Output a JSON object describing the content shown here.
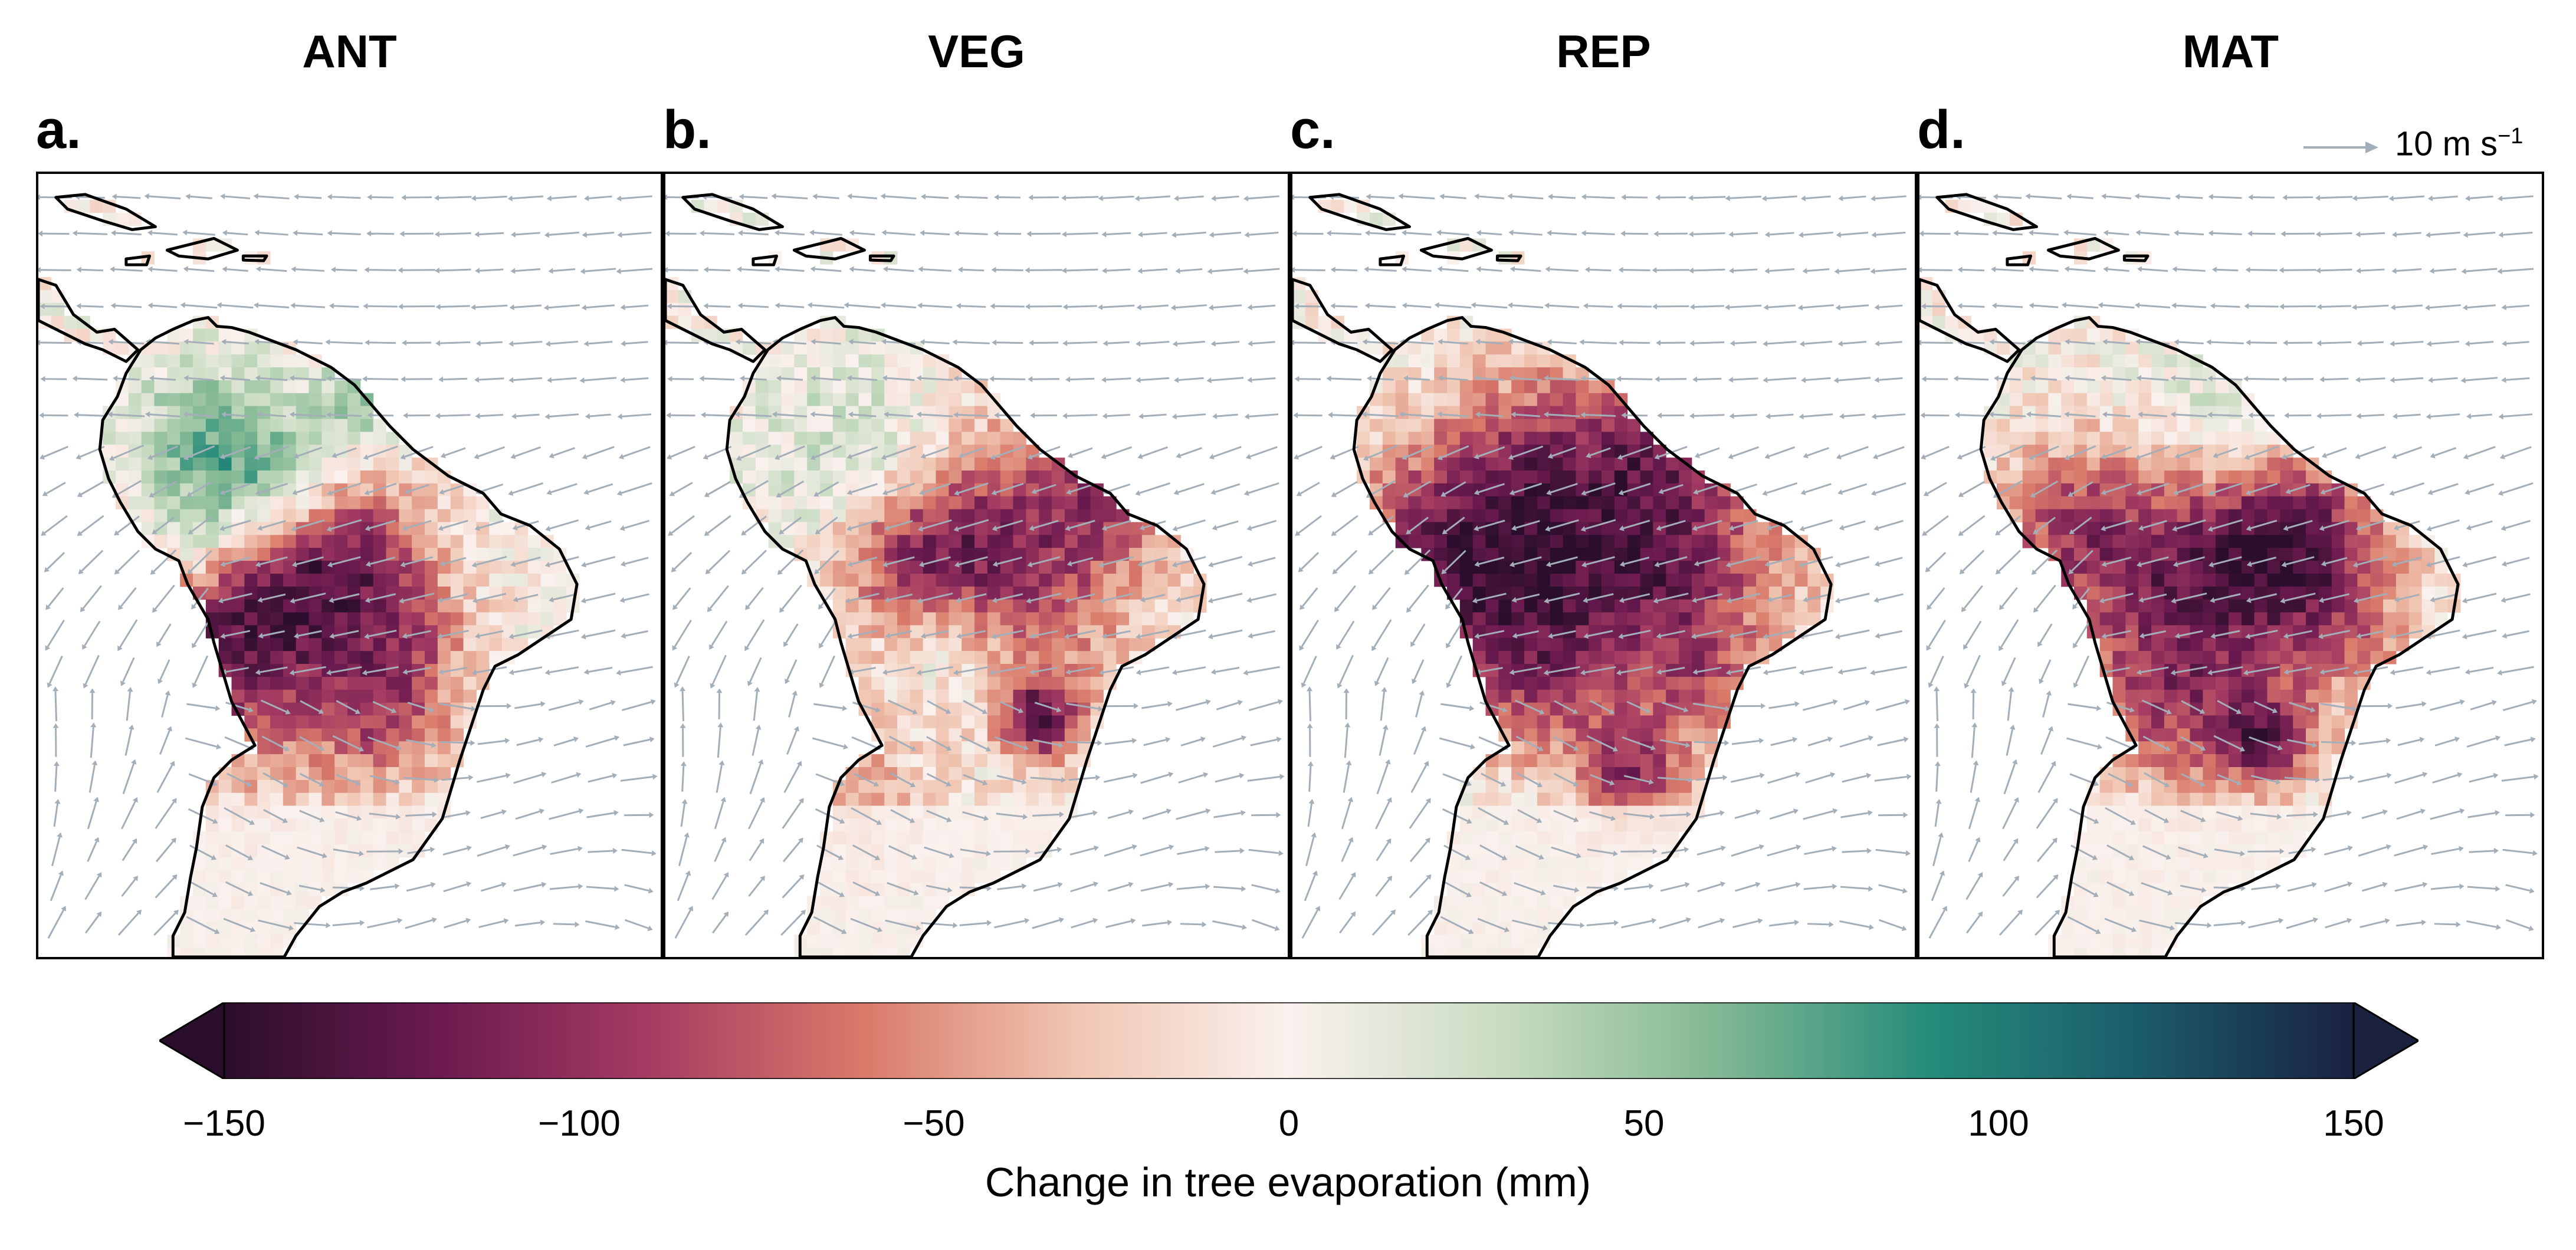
{
  "panels": [
    {
      "title": "ANT",
      "letter": "a."
    },
    {
      "title": "VEG",
      "letter": "b."
    },
    {
      "title": "REP",
      "letter": "c."
    },
    {
      "title": "MAT",
      "letter": "d."
    }
  ],
  "wind_key": {
    "label": "10 m s",
    "superscript": "−1",
    "arrow_color": "#a3aeb9"
  },
  "colorbar": {
    "label": "Change in tree evaporation (mm)",
    "ticks": [
      "−150",
      "−100",
      "−50",
      "0",
      "50",
      "100",
      "150"
    ],
    "range": [
      -150,
      150
    ],
    "extend": "both",
    "colormap": [
      "#2a0e2b",
      "#6b1a4f",
      "#a53c62",
      "#d97a6a",
      "#f0c6b2",
      "#faf1ee",
      "#c9dcc2",
      "#83b894",
      "#258c7a",
      "#1b5b6a",
      "#1a2240"
    ]
  },
  "chart_data": {
    "type": "heatmap",
    "title": "",
    "panels": [
      "ANT",
      "VEG",
      "REP",
      "MAT"
    ],
    "xlabel": "",
    "ylabel": "",
    "colorbar_label": "Change in tree evaporation (mm)",
    "colorbar_range": [
      -150,
      150
    ],
    "colorbar_ticks": [
      -150,
      -100,
      -50,
      0,
      50,
      100,
      150
    ],
    "overlay": "wind vectors (reference 10 m s−1)",
    "legend_position": "top-right"
  }
}
